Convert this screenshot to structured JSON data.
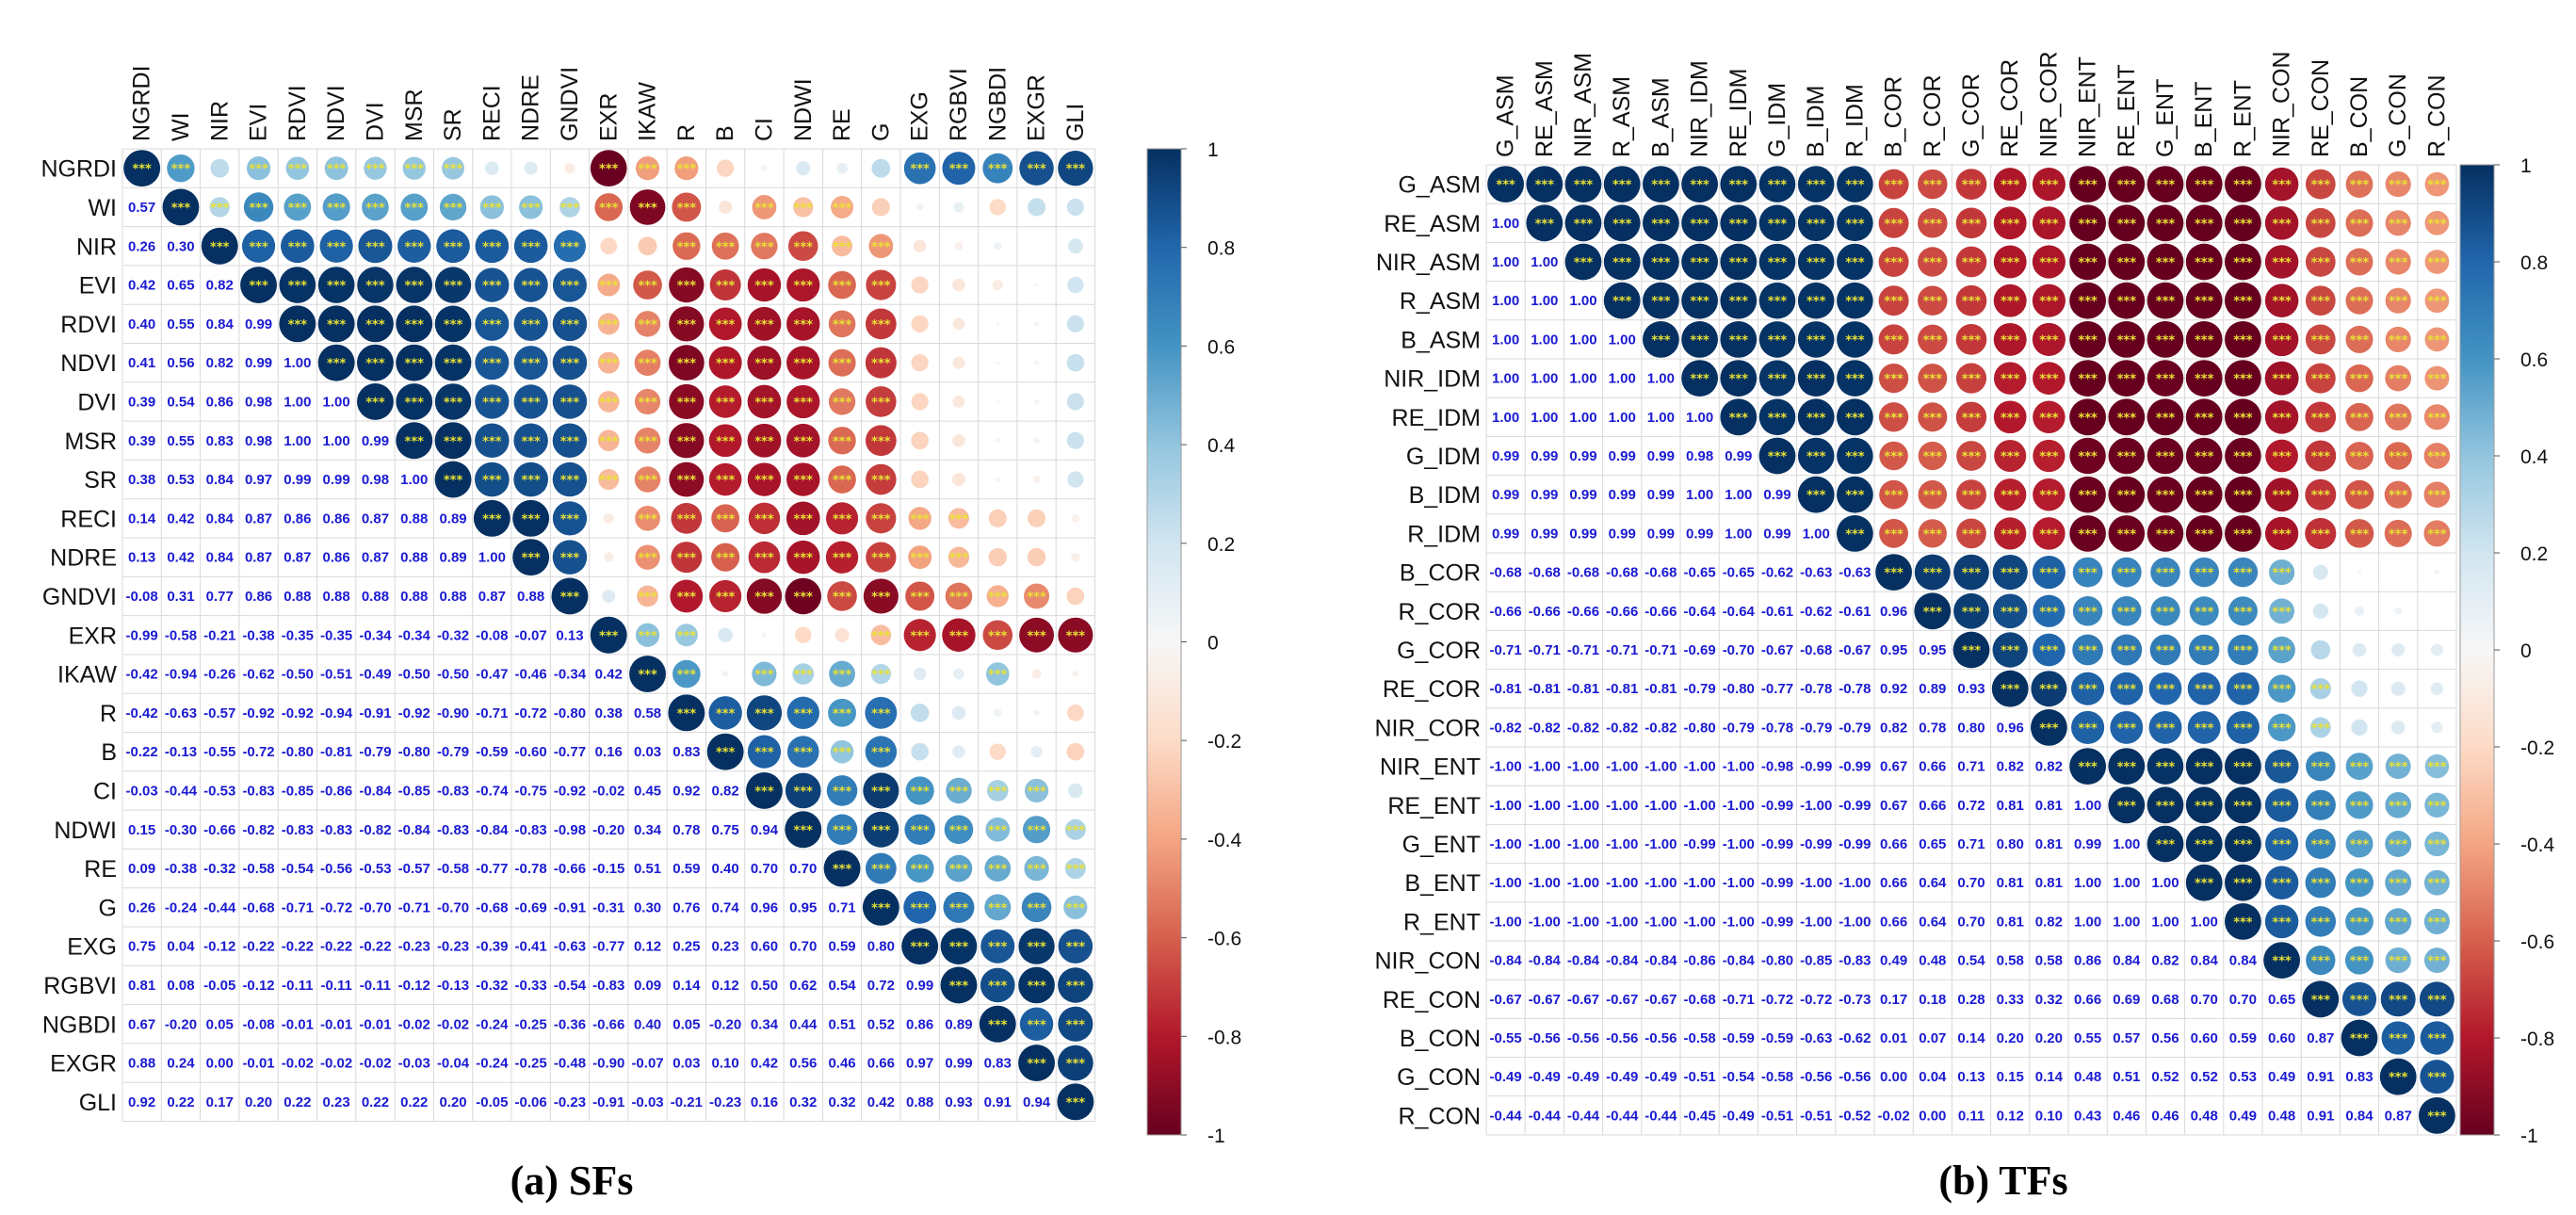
{
  "chart_data": [
    {
      "type": "heatmap",
      "style": "correlation matrix (corrplot); upper triangle: circles sized and coloured by correlation with significance stars; lower triangle: numeric coefficients",
      "title": "(a) SFs",
      "variables": [
        "NGRDI",
        "WI",
        "NIR",
        "EVI",
        "RDVI",
        "NDVI",
        "DVI",
        "MSR",
        "SR",
        "RECI",
        "NDRE",
        "GNDVI",
        "EXR",
        "IKAW",
        "R",
        "B",
        "CI",
        "NDWI",
        "RE",
        "G",
        "EXG",
        "RGBVI",
        "NGBDI",
        "EXGR",
        "GLI"
      ],
      "coefficient_rows": [
        "",
        "0.57",
        "0.26 0.30",
        "0.42 0.65 0.82",
        "0.40 0.55 0.84 0.99",
        "0.41 0.56 0.82 0.99 1.00",
        "0.39 0.54 0.86 0.98 1.00 1.00",
        "0.39 0.55 0.83 0.98 1.00 1.00 0.99",
        "0.38 0.53 0.84 0.97 0.99 0.99 0.98 1.00",
        "0.14 0.42 0.84 0.87 0.86 0.86 0.87 0.88 0.89",
        "0.13 0.42 0.84 0.87 0.87 0.86 0.87 0.88 0.89 1.00",
        "-0.08 0.31 0.77 0.86 0.88 0.88 0.88 0.88 0.88 0.87 0.88",
        "-0.99 -0.58 -0.21 -0.38 -0.35 -0.35 -0.34 -0.34 -0.32 -0.08 -0.07 0.13",
        "-0.42 -0.94 -0.26 -0.62 -0.50 -0.51 -0.49 -0.50 -0.50 -0.47 -0.46 -0.34 0.42",
        "-0.42 -0.63 -0.57 -0.92 -0.92 -0.94 -0.91 -0.92 -0.90 -0.71 -0.72 -0.80 0.38 0.58",
        "-0.22 -0.13 -0.55 -0.72 -0.80 -0.81 -0.79 -0.80 -0.79 -0.59 -0.60 -0.77 0.16 0.03 0.83",
        "-0.03 -0.44 -0.53 -0.83 -0.85 -0.86 -0.84 -0.85 -0.83 -0.74 -0.75 -0.92 -0.02 0.45 0.92 0.82",
        "0.15 -0.30 -0.66 -0.82 -0.83 -0.83 -0.82 -0.84 -0.83 -0.84 -0.83 -0.98 -0.20 0.34 0.78 0.75 0.94",
        "0.09 -0.38 -0.32 -0.58 -0.54 -0.56 -0.53 -0.57 -0.58 -0.77 -0.78 -0.66 -0.15 0.51 0.59 0.40 0.70 0.70",
        "0.26 -0.24 -0.44 -0.68 -0.71 -0.72 -0.70 -0.71 -0.70 -0.68 -0.69 -0.91 -0.31 0.30 0.76 0.74 0.96 0.95 0.71",
        "0.75 0.04 -0.12 -0.22 -0.22 -0.22 -0.22 -0.23 -0.23 -0.39 -0.41 -0.63 -0.77 0.12 0.25 0.23 0.60 0.70 0.59 0.80",
        "0.81 0.08 -0.05 -0.12 -0.11 -0.11 -0.11 -0.12 -0.13 -0.32 -0.33 -0.54 -0.83 0.09 0.14 0.12 0.50 0.62 0.54 0.72 0.99",
        "0.67 -0.20 0.05 -0.08 -0.01 -0.01 -0.01 -0.02 -0.02 -0.24 -0.25 -0.36 -0.66 0.40 0.05 -0.20 0.34 0.44 0.51 0.52 0.86 0.89",
        "0.88 0.24 0.00 -0.01 -0.02 -0.02 -0.02 -0.03 -0.04 -0.24 -0.25 -0.48 -0.90 -0.07 0.03 0.10 0.42 0.56 0.46 0.66 0.97 0.99 0.83",
        "0.92 0.22 0.17 0.20 0.22 0.23 0.22 0.22 0.20 -0.05 -0.06 -0.23 -0.91 -0.03 -0.21 -0.23 0.16 0.32 0.32 0.42 0.88 0.93 0.91 0.94"
      ],
      "diagonal": 1.0,
      "significance_marker": "***",
      "colorbar": {
        "ticks": [
          "1",
          "0.8",
          "0.6",
          "0.4",
          "0.2",
          "0",
          "-0.2",
          "-0.4",
          "-0.6",
          "-0.8",
          "-1"
        ],
        "range": [
          -1,
          1
        ],
        "colors": {
          "neg": "#67001f",
          "zero": "#f7f7f7",
          "pos": "#053061"
        }
      }
    },
    {
      "type": "heatmap",
      "style": "correlation matrix (corrplot); upper triangle: circles sized and coloured by correlation with significance stars; lower triangle: numeric coefficients",
      "title": "(b) TFs",
      "variables": [
        "G_ASM",
        "RE_ASM",
        "NIR_ASM",
        "R_ASM",
        "B_ASM",
        "NIR_IDM",
        "RE_IDM",
        "G_IDM",
        "B_IDM",
        "R_IDM",
        "B_COR",
        "R_COR",
        "G_COR",
        "RE_COR",
        "NIR_COR",
        "NIR_ENT",
        "RE_ENT",
        "G_ENT",
        "B_ENT",
        "R_ENT",
        "NIR_CON",
        "RE_CON",
        "B_CON",
        "G_CON",
        "R_CON"
      ],
      "coefficient_rows": [
        "",
        "1.00",
        "1.00 1.00",
        "1.00 1.00 1.00",
        "1.00 1.00 1.00 1.00",
        "1.00 1.00 1.00 1.00 1.00",
        "1.00 1.00 1.00 1.00 1.00 1.00",
        "0.99 0.99 0.99 0.99 0.99 0.98 0.99",
        "0.99 0.99 0.99 0.99 0.99 1.00 1.00 0.99",
        "0.99 0.99 0.99 0.99 0.99 0.99 1.00 0.99 1.00",
        "-0.68 -0.68 -0.68 -0.68 -0.68 -0.65 -0.65 -0.62 -0.63 -0.63",
        "-0.66 -0.66 -0.66 -0.66 -0.66 -0.64 -0.64 -0.61 -0.62 -0.61 0.96",
        "-0.71 -0.71 -0.71 -0.71 -0.71 -0.69 -0.70 -0.67 -0.68 -0.67 0.95 0.95",
        "-0.81 -0.81 -0.81 -0.81 -0.81 -0.79 -0.80 -0.77 -0.78 -0.78 0.92 0.89 0.93",
        "-0.82 -0.82 -0.82 -0.82 -0.82 -0.80 -0.79 -0.78 -0.79 -0.79 0.82 0.78 0.80 0.96",
        "-1.00 -1.00 -1.00 -1.00 -1.00 -1.00 -1.00 -0.98 -0.99 -0.99 0.67 0.66 0.71 0.82 0.82",
        "-1.00 -1.00 -1.00 -1.00 -1.00 -1.00 -1.00 -0.99 -1.00 -0.99 0.67 0.66 0.72 0.81 0.81 1.00",
        "-1.00 -1.00 -1.00 -1.00 -1.00 -0.99 -1.00 -0.99 -0.99 -0.99 0.66 0.65 0.71 0.80 0.81 0.99 1.00",
        "-1.00 -1.00 -1.00 -1.00 -1.00 -1.00 -1.00 -0.99 -1.00 -1.00 0.66 0.64 0.70 0.81 0.81 1.00 1.00 1.00",
        "-1.00 -1.00 -1.00 -1.00 -1.00 -1.00 -1.00 -0.99 -1.00 -1.00 0.66 0.64 0.70 0.81 0.82 1.00 1.00 1.00 1.00",
        "-0.84 -0.84 -0.84 -0.84 -0.84 -0.86 -0.84 -0.80 -0.85 -0.83 0.49 0.48 0.54 0.58 0.58 0.86 0.84 0.82 0.84 0.84",
        "-0.67 -0.67 -0.67 -0.67 -0.67 -0.68 -0.71 -0.72 -0.72 -0.73 0.17 0.18 0.28 0.33 0.32 0.66 0.69 0.68 0.70 0.70 0.65",
        "-0.55 -0.56 -0.56 -0.56 -0.56 -0.58 -0.59 -0.59 -0.63 -0.62 0.01 0.07 0.14 0.20 0.20 0.55 0.57 0.56 0.60 0.59 0.60 0.87",
        "-0.49 -0.49 -0.49 -0.49 -0.49 -0.51 -0.54 -0.58 -0.56 -0.56 0.00 0.04 0.13 0.15 0.14 0.48 0.51 0.52 0.52 0.53 0.49 0.91 0.83",
        "-0.44 -0.44 -0.44 -0.44 -0.44 -0.45 -0.49 -0.51 -0.51 -0.52 -0.02 0.00 0.11 0.12 0.10 0.43 0.46 0.46 0.48 0.49 0.48 0.91 0.84 0.87"
      ],
      "diagonal": 1.0,
      "significance_marker": "***",
      "colorbar": {
        "ticks": [
          "1",
          "0.8",
          "0.6",
          "0.4",
          "0.2",
          "0",
          "-0.2",
          "-0.4",
          "-0.6",
          "-0.8",
          "-1"
        ],
        "range": [
          -1,
          1
        ],
        "colors": {
          "neg": "#67001f",
          "zero": "#f7f7f7",
          "pos": "#053061"
        }
      }
    }
  ]
}
